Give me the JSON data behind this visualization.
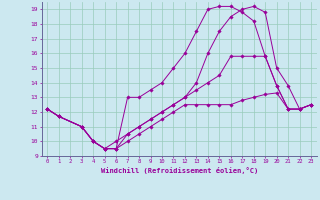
{
  "xlabel": "Windchill (Refroidissement éolien,°C)",
  "bg_color": "#cce8f0",
  "grid_color": "#99ccbb",
  "line_color": "#990099",
  "xlim": [
    -0.5,
    23.5
  ],
  "ylim": [
    9,
    19.5
  ],
  "xticks": [
    0,
    1,
    2,
    3,
    4,
    5,
    6,
    7,
    8,
    9,
    10,
    11,
    12,
    13,
    14,
    15,
    16,
    17,
    18,
    19,
    20,
    21,
    22,
    23
  ],
  "yticks": [
    9,
    10,
    11,
    12,
    13,
    14,
    15,
    16,
    17,
    18,
    19
  ],
  "lines": [
    {
      "x": [
        0,
        1,
        3,
        4,
        5,
        6,
        7,
        8,
        9,
        10,
        11,
        12,
        13,
        14,
        15,
        16,
        17,
        18,
        19,
        20,
        21,
        22,
        23
      ],
      "y": [
        12.2,
        11.7,
        11.0,
        10.0,
        9.5,
        9.5,
        13.0,
        13.0,
        13.5,
        14.0,
        15.0,
        16.0,
        17.5,
        19.0,
        19.2,
        19.2,
        18.8,
        18.2,
        15.8,
        13.8,
        12.2,
        12.2,
        12.5
      ]
    },
    {
      "x": [
        0,
        1,
        3,
        4,
        5,
        6,
        7,
        8,
        9,
        10,
        11,
        12,
        13,
        14,
        15,
        16,
        17,
        18,
        19,
        20,
        21,
        22,
        23
      ],
      "y": [
        12.2,
        11.7,
        11.0,
        10.0,
        9.5,
        10.0,
        10.5,
        11.0,
        11.5,
        12.0,
        12.5,
        13.0,
        14.0,
        16.0,
        17.5,
        18.5,
        19.0,
        19.2,
        18.8,
        15.0,
        13.8,
        12.2,
        12.5
      ]
    },
    {
      "x": [
        0,
        1,
        3,
        4,
        5,
        6,
        7,
        8,
        9,
        10,
        11,
        12,
        13,
        14,
        15,
        16,
        17,
        18,
        19,
        20,
        21,
        22,
        23
      ],
      "y": [
        12.2,
        11.7,
        11.0,
        10.0,
        9.5,
        9.5,
        10.5,
        11.0,
        11.5,
        12.0,
        12.5,
        13.0,
        13.5,
        14.0,
        14.5,
        15.8,
        15.8,
        15.8,
        15.8,
        13.8,
        12.2,
        12.2,
        12.5
      ]
    },
    {
      "x": [
        0,
        1,
        3,
        4,
        5,
        6,
        7,
        8,
        9,
        10,
        11,
        12,
        13,
        14,
        15,
        16,
        17,
        18,
        19,
        20,
        21,
        22,
        23
      ],
      "y": [
        12.2,
        11.7,
        11.0,
        10.0,
        9.5,
        9.5,
        10.0,
        10.5,
        11.0,
        11.5,
        12.0,
        12.5,
        12.5,
        12.5,
        12.5,
        12.5,
        12.8,
        13.0,
        13.2,
        13.3,
        12.2,
        12.2,
        12.5
      ]
    }
  ]
}
